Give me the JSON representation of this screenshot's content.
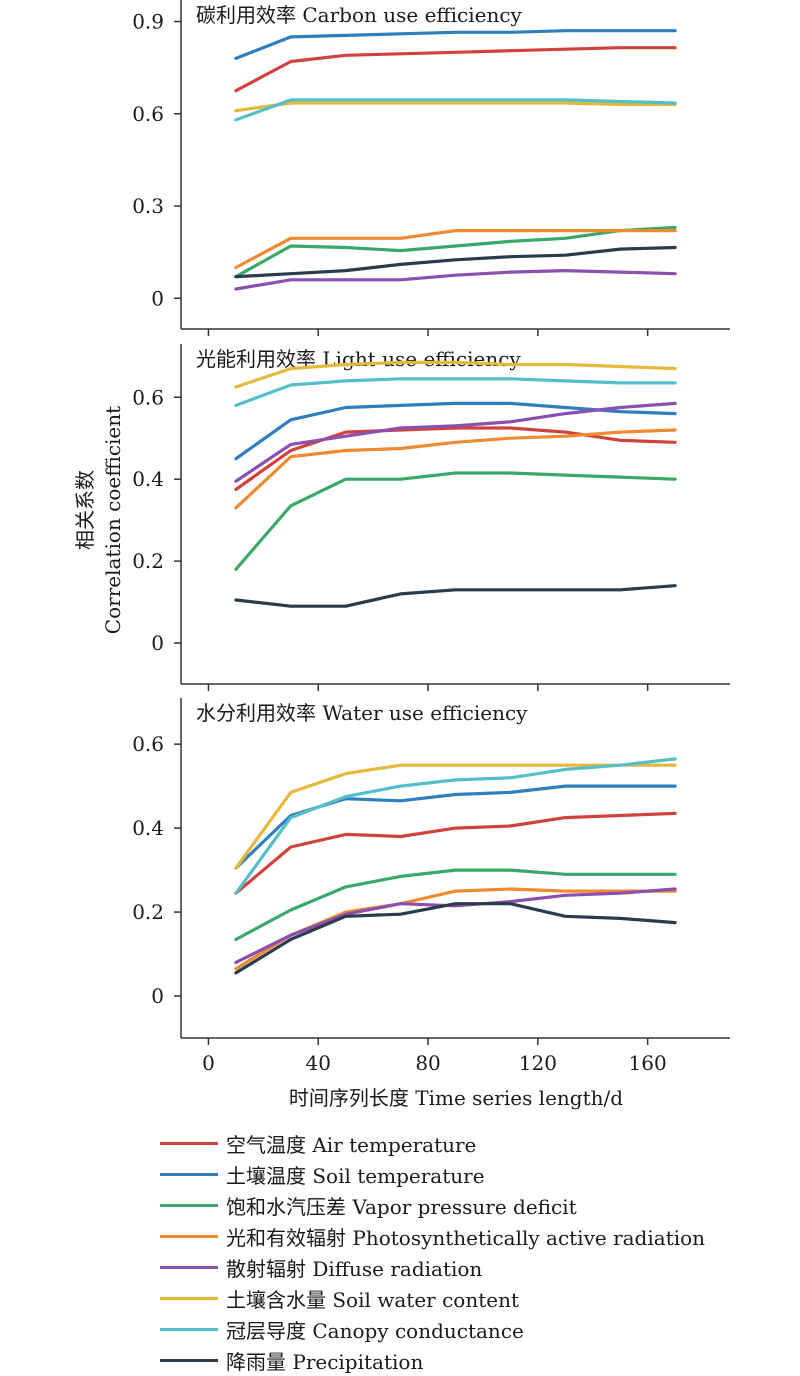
{
  "y_axis_label": {
    "line1": "相关系数",
    "line2": "Correlation coefficient"
  },
  "x_axis_label": "时间序列长度 Time series length/d",
  "series_names": [
    "空气温度 Air temperature",
    "土壤温度 Soil temperature",
    "饱和水汽压差 Vapor pressure deficit",
    "光和有效辐射 Photosynthetically active radiation",
    "散射辐射 Diffuse radiation",
    "土壤含水量 Soil water content",
    "冠层导度 Canopy conductance",
    "降雨量 Precipitation"
  ],
  "colors": [
    "#d2423d",
    "#2f7ec0",
    "#3aa86a",
    "#f08a30",
    "#8a4fb0",
    "#e5b93a",
    "#54bfc9",
    "#2a3c4c"
  ],
  "chart_data": [
    {
      "type": "line",
      "title": "碳利用效率 Carbon use efficiency",
      "x": [
        10,
        30,
        50,
        70,
        90,
        110,
        130,
        150,
        170
      ],
      "x_ticks": [
        0,
        40,
        80,
        120,
        160
      ],
      "x_tick_labels": [
        "0",
        "40",
        "80",
        "120",
        "160"
      ],
      "xlim": [
        -10,
        190
      ],
      "ylim": [
        -0.1,
        0.97
      ],
      "y_ticks": [
        0,
        0.3,
        0.6,
        0.9
      ],
      "y_tick_labels": [
        "0",
        "0.3",
        "0.6",
        "0.9"
      ],
      "series": [
        {
          "name": "空气温度 Air temperature",
          "values": [
            0.675,
            0.77,
            0.79,
            0.795,
            0.8,
            0.805,
            0.81,
            0.815,
            0.815
          ]
        },
        {
          "name": "土壤温度 Soil temperature",
          "values": [
            0.78,
            0.85,
            0.855,
            0.86,
            0.865,
            0.865,
            0.87,
            0.87,
            0.87
          ]
        },
        {
          "name": "饱和水汽压差 Vapor pressure deficit",
          "values": [
            0.07,
            0.17,
            0.165,
            0.155,
            0.17,
            0.185,
            0.195,
            0.22,
            0.23
          ]
        },
        {
          "name": "光和有效辐射 Photosynthetically active radiation",
          "values": [
            0.1,
            0.195,
            0.195,
            0.195,
            0.22,
            0.22,
            0.22,
            0.22,
            0.22
          ]
        },
        {
          "name": "散射辐射 Diffuse radiation",
          "values": [
            0.03,
            0.06,
            0.06,
            0.06,
            0.075,
            0.085,
            0.09,
            0.085,
            0.08
          ]
        },
        {
          "name": "土壤含水量 Soil water content",
          "values": [
            0.61,
            0.635,
            0.635,
            0.635,
            0.635,
            0.635,
            0.635,
            0.63,
            0.63
          ]
        },
        {
          "name": "冠层导度 Canopy conductance",
          "values": [
            0.58,
            0.645,
            0.645,
            0.645,
            0.645,
            0.645,
            0.645,
            0.64,
            0.635
          ]
        },
        {
          "name": "降雨量 Precipitation",
          "values": [
            0.07,
            0.08,
            0.09,
            0.11,
            0.125,
            0.135,
            0.14,
            0.16,
            0.165
          ]
        }
      ]
    },
    {
      "type": "line",
      "title": "光能利用效率 Light use efficiency",
      "x": [
        10,
        30,
        50,
        70,
        90,
        110,
        130,
        150,
        170
      ],
      "x_ticks": [
        0,
        40,
        80,
        120,
        160
      ],
      "x_tick_labels": [
        "0",
        "40",
        "80",
        "120",
        "160"
      ],
      "xlim": [
        -10,
        190
      ],
      "ylim": [
        -0.1,
        0.73
      ],
      "y_ticks": [
        0,
        0.2,
        0.4,
        0.6
      ],
      "y_tick_labels": [
        "0",
        "0.2",
        "0.4",
        "0.6"
      ],
      "series": [
        {
          "name": "空气温度 Air temperature",
          "values": [
            0.375,
            0.47,
            0.515,
            0.52,
            0.525,
            0.525,
            0.515,
            0.495,
            0.49
          ]
        },
        {
          "name": "土壤温度 Soil temperature",
          "values": [
            0.45,
            0.545,
            0.575,
            0.58,
            0.585,
            0.585,
            0.575,
            0.565,
            0.56
          ]
        },
        {
          "name": "饱和水汽压差 Vapor pressure deficit",
          "values": [
            0.18,
            0.335,
            0.4,
            0.4,
            0.415,
            0.415,
            0.41,
            0.405,
            0.4
          ]
        },
        {
          "name": "光和有效辐射 Photosynthetically active radiation",
          "values": [
            0.33,
            0.455,
            0.47,
            0.475,
            0.49,
            0.5,
            0.505,
            0.515,
            0.52
          ]
        },
        {
          "name": "散射辐射 Diffuse radiation",
          "values": [
            0.395,
            0.485,
            0.505,
            0.525,
            0.53,
            0.54,
            0.56,
            0.575,
            0.585
          ]
        },
        {
          "name": "土壤含水量 Soil water content",
          "values": [
            0.625,
            0.67,
            0.68,
            0.685,
            0.685,
            0.68,
            0.68,
            0.675,
            0.67
          ]
        },
        {
          "name": "冠层导度 Canopy conductance",
          "values": [
            0.58,
            0.63,
            0.64,
            0.645,
            0.645,
            0.645,
            0.64,
            0.635,
            0.635
          ]
        },
        {
          "name": "降雨量 Precipitation",
          "values": [
            0.105,
            0.09,
            0.09,
            0.12,
            0.13,
            0.13,
            0.13,
            0.13,
            0.14
          ]
        }
      ]
    },
    {
      "type": "line",
      "title": "水分利用效率 Water use efficiency",
      "x": [
        10,
        30,
        50,
        70,
        90,
        110,
        130,
        150,
        170
      ],
      "x_ticks": [
        0,
        40,
        80,
        120,
        160
      ],
      "x_tick_labels": [
        "0",
        "40",
        "80",
        "120",
        "160"
      ],
      "xlim": [
        -10,
        190
      ],
      "ylim": [
        -0.1,
        0.71
      ],
      "y_ticks": [
        0,
        0.2,
        0.4,
        0.6
      ],
      "y_tick_labels": [
        "0",
        "0.2",
        "0.4",
        "0.6"
      ],
      "series": [
        {
          "name": "空气温度 Air temperature",
          "values": [
            0.245,
            0.355,
            0.385,
            0.38,
            0.4,
            0.405,
            0.425,
            0.43,
            0.435
          ]
        },
        {
          "name": "土壤温度 Soil temperature",
          "values": [
            0.305,
            0.43,
            0.47,
            0.465,
            0.48,
            0.485,
            0.5,
            0.5,
            0.5
          ]
        },
        {
          "name": "饱和水汽压差 Vapor pressure deficit",
          "values": [
            0.135,
            0.205,
            0.26,
            0.285,
            0.3,
            0.3,
            0.29,
            0.29,
            0.29
          ]
        },
        {
          "name": "光和有效辐射 Photosynthetically active radiation",
          "values": [
            0.065,
            0.145,
            0.2,
            0.22,
            0.25,
            0.255,
            0.25,
            0.25,
            0.25
          ]
        },
        {
          "name": "散射辐射 Diffuse radiation",
          "values": [
            0.08,
            0.145,
            0.195,
            0.22,
            0.215,
            0.225,
            0.24,
            0.245,
            0.255
          ]
        },
        {
          "name": "土壤含水量 Soil water content",
          "values": [
            0.305,
            0.485,
            0.53,
            0.55,
            0.55,
            0.55,
            0.55,
            0.55,
            0.55
          ]
        },
        {
          "name": "冠层导度 Canopy conductance",
          "values": [
            0.245,
            0.425,
            0.475,
            0.5,
            0.515,
            0.52,
            0.54,
            0.55,
            0.565
          ]
        },
        {
          "name": "降雨量 Precipitation",
          "values": [
            0.055,
            0.135,
            0.19,
            0.195,
            0.22,
            0.22,
            0.19,
            0.185,
            0.175
          ]
        }
      ]
    }
  ]
}
